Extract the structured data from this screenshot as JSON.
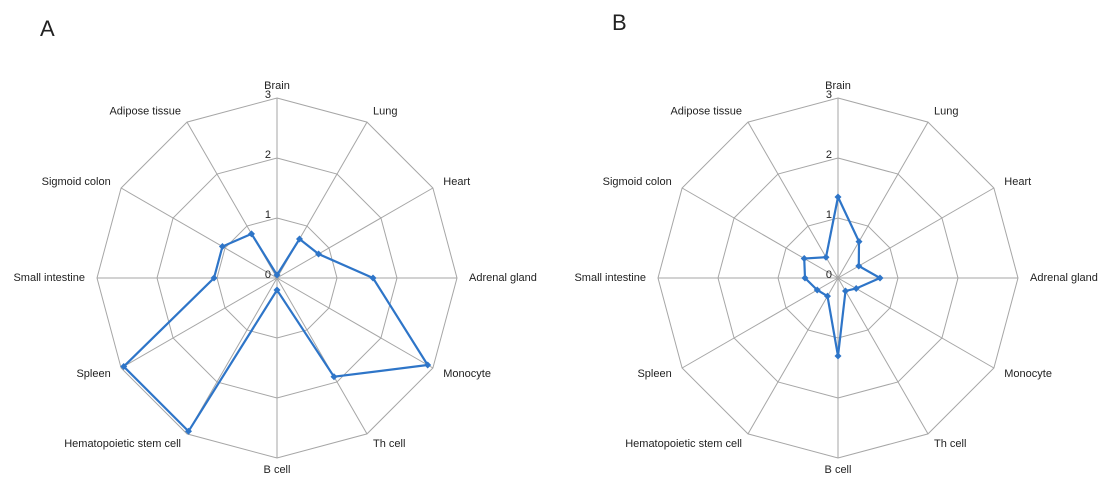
{
  "chart_data": [
    {
      "type": "radar",
      "title": "A",
      "categories": [
        "Brain",
        "Lung",
        "Heart",
        "Adrenal gland",
        "Monocyte",
        "Th cell",
        "B cell",
        "Hematopoietic stem cell",
        "Spleen",
        "Small intestine",
        "Sigmoid colon",
        "Adipose tissue"
      ],
      "values": [
        0.05,
        0.75,
        0.8,
        1.6,
        2.9,
        1.9,
        0.2,
        2.95,
        2.95,
        1.05,
        1.05,
        0.85
      ],
      "color": "#2e75c8",
      "ylim": [
        0,
        3
      ],
      "yticks": [
        0,
        1,
        2,
        3
      ],
      "grid": true
    },
    {
      "type": "radar",
      "title": "B",
      "categories": [
        "Brain",
        "Lung",
        "Heart",
        "Adrenal gland",
        "Monocyte",
        "Th cell",
        "B cell",
        "Hematopoietic stem cell",
        "Spleen",
        "Small intestine",
        "Sigmoid colon",
        "Adipose tissue"
      ],
      "values": [
        1.35,
        0.7,
        0.4,
        0.7,
        0.35,
        0.25,
        1.3,
        0.35,
        0.4,
        0.55,
        0.65,
        0.4
      ],
      "color": "#2e75c8",
      "ylim": [
        0,
        3
      ],
      "yticks": [
        0,
        1,
        2,
        3
      ],
      "grid": true
    }
  ]
}
